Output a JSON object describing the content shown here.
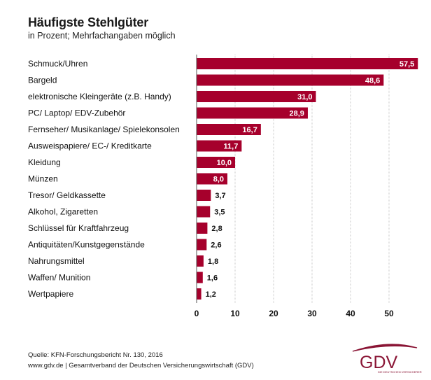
{
  "header": {
    "title": "Häufigste Stehlgüter",
    "subtitle": "in Prozent; Mehrfachangaben möglich"
  },
  "footer": {
    "source": "Quelle: KFN-Forschungsbericht Nr. 130,  2016",
    "publisher": "www.gdv.de | Gesamtverband der Deutschen Versicherungswirtschaft (GDV)",
    "logo_text": "GDV",
    "logo_tagline": "DIE DEUTSCHEN VERSICHERER"
  },
  "colors": {
    "bar": "#A6002C",
    "grid": "#c8c8c8",
    "axis": "#555555"
  },
  "chart_data": {
    "type": "bar",
    "orientation": "horizontal",
    "title": "Häufigste Stehlgüter",
    "subtitle": "in Prozent; Mehrfachangaben möglich",
    "xlabel": "",
    "ylabel": "",
    "xlim": [
      0,
      57.5
    ],
    "xticks": [
      0,
      10,
      20,
      30,
      40,
      50
    ],
    "grid": true,
    "categories": [
      "Schmuck/Uhren",
      "Bargeld",
      "elektronische Kleingeräte (z.B. Handy)",
      "PC/ Laptop/ EDV-Zubehör",
      "Fernseher/ Musikanlage/ Spielekonsolen",
      "Ausweispapiere/ EC-/ Kreditkarte",
      "Kleidung",
      "Münzen",
      "Tresor/ Geldkassette",
      "Alkohol, Zigaretten",
      "Schlüssel für Kraftfahrzeug",
      "Antiquitäten/Kunstgegenstände",
      "Nahrungsmittel",
      "Waffen/ Munition",
      "Wertpapiere"
    ],
    "values": [
      57.5,
      48.6,
      31.0,
      28.9,
      16.7,
      11.7,
      10.0,
      8.0,
      3.7,
      3.5,
      2.8,
      2.6,
      1.8,
      1.6,
      1.2
    ],
    "labels": [
      "57,5",
      "48,6",
      "31,0",
      "28,9",
      "16,7",
      "11,7",
      "10,0",
      "8,0",
      "3,7",
      "3,5",
      "2,8",
      "2,6",
      "1,8",
      "1,6",
      "1,2"
    ]
  }
}
